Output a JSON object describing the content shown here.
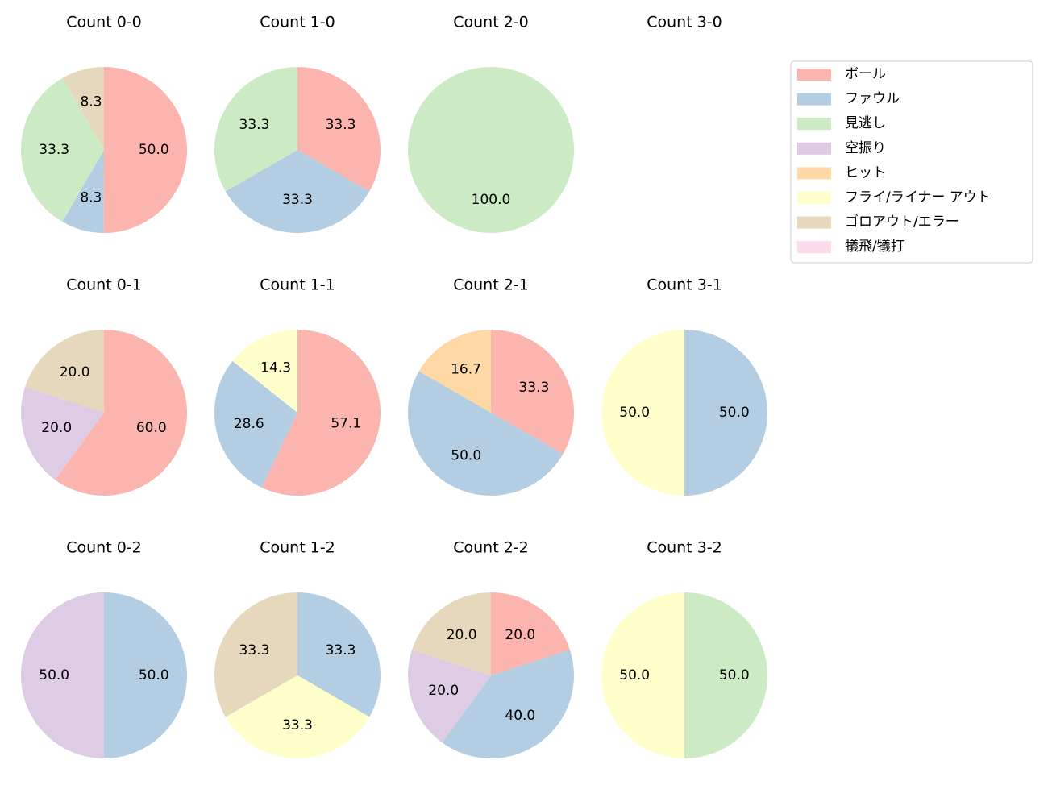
{
  "legend": {
    "labels": [
      "ボール",
      "ファウル",
      "見逃し",
      "空振り",
      "ヒット",
      "フライ/ライナー アウト",
      "ゴロアウト/エラー",
      "犠飛/犠打"
    ],
    "colors": [
      "#fbb4ae",
      "#b3cde3",
      "#ccebc5",
      "#decbe4",
      "#fed9a6",
      "#ffffcc",
      "#e5d8bd",
      "#fddaec"
    ],
    "loc": "upper right"
  },
  "chart_data": [
    {
      "type": "pie",
      "title": "Count 0-0",
      "categories": [
        "ボール",
        "ファウル",
        "見逃し",
        "ゴロアウト/エラー"
      ],
      "values": [
        50,
        8.3,
        33.3,
        8.3
      ],
      "value_labels": [
        "50.0",
        "8.3",
        "33.3",
        "8.3"
      ]
    },
    {
      "type": "pie",
      "title": "Count 1-0",
      "categories": [
        "ボール",
        "ファウル",
        "見逃し"
      ],
      "values": [
        33.3,
        33.3,
        33.3
      ],
      "value_labels": [
        "33.3",
        "33.3",
        "33.3"
      ]
    },
    {
      "type": "pie",
      "title": "Count 2-0",
      "categories": [
        "見逃し"
      ],
      "values": [
        100
      ],
      "value_labels": [
        "100.0"
      ]
    },
    {
      "type": "pie",
      "title": "Count 3-0",
      "categories": [],
      "values": [],
      "value_labels": []
    },
    {
      "type": "pie",
      "title": "Count 0-1",
      "categories": [
        "ボール",
        "空振り",
        "ゴロアウト/エラー"
      ],
      "values": [
        60,
        20,
        20
      ],
      "value_labels": [
        "60.0",
        "20.0",
        "20.0"
      ]
    },
    {
      "type": "pie",
      "title": "Count 1-1",
      "categories": [
        "ボール",
        "ファウル",
        "フライ/ライナー アウト"
      ],
      "values": [
        57.1,
        28.6,
        14.3
      ],
      "value_labels": [
        "57.1",
        "28.6",
        "14.3"
      ]
    },
    {
      "type": "pie",
      "title": "Count 2-1",
      "categories": [
        "ボール",
        "ファウル",
        "ヒット"
      ],
      "values": [
        33.3,
        50,
        16.7
      ],
      "value_labels": [
        "33.3",
        "50.0",
        "16.7"
      ]
    },
    {
      "type": "pie",
      "title": "Count 3-1",
      "categories": [
        "ファウル",
        "フライ/ライナー アウト"
      ],
      "values": [
        50,
        50
      ],
      "value_labels": [
        "50.0",
        "50.0"
      ]
    },
    {
      "type": "pie",
      "title": "Count 0-2",
      "categories": [
        "ファウル",
        "空振り"
      ],
      "values": [
        50,
        50
      ],
      "value_labels": [
        "50.0",
        "50.0"
      ]
    },
    {
      "type": "pie",
      "title": "Count 1-2",
      "categories": [
        "ファウル",
        "フライ/ライナー アウト",
        "ゴロアウト/エラー"
      ],
      "values": [
        33.3,
        33.3,
        33.3
      ],
      "value_labels": [
        "33.3",
        "33.3",
        "33.3"
      ]
    },
    {
      "type": "pie",
      "title": "Count 2-2",
      "categories": [
        "ボール",
        "ファウル",
        "空振り",
        "ゴロアウト/エラー"
      ],
      "values": [
        20,
        40,
        20,
        20
      ],
      "value_labels": [
        "20.0",
        "40.0",
        "20.0",
        "20.0"
      ]
    },
    {
      "type": "pie",
      "title": "Count 3-2",
      "categories": [
        "見逃し",
        "フライ/ライナー アウト"
      ],
      "values": [
        50,
        50
      ],
      "value_labels": [
        "50.0",
        "50.0"
      ]
    }
  ]
}
